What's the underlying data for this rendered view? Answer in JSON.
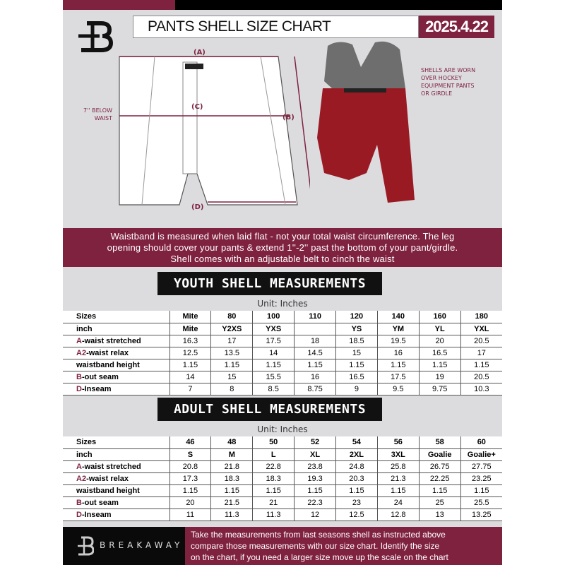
{
  "header": {
    "title": "PANTS SHELL SIZE CHART",
    "date": "2025.4.22"
  },
  "diagram": {
    "label_a": "(A)",
    "label_b": "(B)",
    "label_c": "(C)",
    "label_d": "(D)",
    "below_waist_line1": "7'' BELOW",
    "below_waist_line2": "WAIST"
  },
  "photo_note": [
    "SHELLS ARE WORN",
    "OVER HOCKEY",
    "EQUIPMENT PANTS",
    "OR GIRDLE"
  ],
  "banner": [
    "Waistband is measured when laid flat - not your total waist circumference. The leg",
    "opening should cover your pants & extend 1''-2'' past the bottom of your pant/girdle.",
    "Shell comes with an adjustable belt to cinch the waist"
  ],
  "youth": {
    "title": "YOUTH SHELL MEASUREMENTS",
    "unit": "Unit: Inches",
    "rows": [
      {
        "prefix": "",
        "label": "Sizes",
        "values": [
          "Mite",
          "80",
          "100",
          "110",
          "120",
          "140",
          "160",
          "180"
        ]
      },
      {
        "prefix": "",
        "label": "inch",
        "values": [
          "Mite",
          "Y2XS",
          "YXS",
          "",
          "YS",
          "YM",
          "YL",
          "YXL"
        ]
      },
      {
        "prefix": "A",
        "label": "-waist stretched",
        "values": [
          "16.3",
          "17",
          "17.5",
          "18",
          "18.5",
          "19.5",
          "20",
          "20.5"
        ]
      },
      {
        "prefix": "A2",
        "label": "-waist relax",
        "values": [
          "12.5",
          "13.5",
          "14",
          "14.5",
          "15",
          "16",
          "16.5",
          "17"
        ]
      },
      {
        "prefix": "",
        "label": "waistband height",
        "values": [
          "1.15",
          "1.15",
          "1.15",
          "1.15",
          "1.15",
          "1.15",
          "1.15",
          "1.15"
        ]
      },
      {
        "prefix": "B",
        "label": "-out seam",
        "values": [
          "14",
          "15",
          "15.5",
          "16",
          "16.5",
          "17.5",
          "19",
          "20.5"
        ]
      },
      {
        "prefix": "D",
        "label": "-Inseam",
        "values": [
          "7",
          "8",
          "8.5",
          "8.75",
          "9",
          "9.5",
          "9.75",
          "10.3"
        ]
      }
    ]
  },
  "adult": {
    "title": "ADULT SHELL MEASUREMENTS",
    "unit": "Unit: Inches",
    "rows": [
      {
        "prefix": "",
        "label": "Sizes",
        "values": [
          "46",
          "48",
          "50",
          "52",
          "54",
          "56",
          "58",
          "60"
        ]
      },
      {
        "prefix": "",
        "label": "inch",
        "values": [
          "S",
          "M",
          "L",
          "XL",
          "2XL",
          "3XL",
          "Goalie",
          "Goalie+"
        ]
      },
      {
        "prefix": "A",
        "label": "-waist stretched",
        "values": [
          "20.8",
          "21.8",
          "22.8",
          "23.8",
          "24.8",
          "25.8",
          "26.75",
          "27.75"
        ]
      },
      {
        "prefix": "A2",
        "label": "-waist relax",
        "values": [
          "17.3",
          "18.3",
          "18.3",
          "19.3",
          "20.3",
          "21.3",
          "22.25",
          "23.25"
        ]
      },
      {
        "prefix": "",
        "label": "waistband height",
        "values": [
          "1.15",
          "1.15",
          "1.15",
          "1.15",
          "1.15",
          "1.15",
          "1.15",
          "1.15"
        ]
      },
      {
        "prefix": "B",
        "label": "-out seam",
        "values": [
          "20",
          "21.5",
          "21",
          "22.3",
          "23",
          "24",
          "25",
          "25.5"
        ]
      },
      {
        "prefix": "D",
        "label": "-Inseam",
        "values": [
          "11",
          "11.3",
          "11.3",
          "12",
          "12.5",
          "12.8",
          "13",
          "13.25"
        ]
      }
    ]
  },
  "footer": {
    "brand": "BREAKAWAY",
    "text": [
      "Take the measurements from last seasons shell as instructed above",
      "compare those measurements  with our size chart. Identify the size",
      "on the chart, if you need a larger size move up the scale on the chart"
    ]
  },
  "colors": {
    "accent": "#7f2240",
    "background": "#dcdcdf"
  }
}
